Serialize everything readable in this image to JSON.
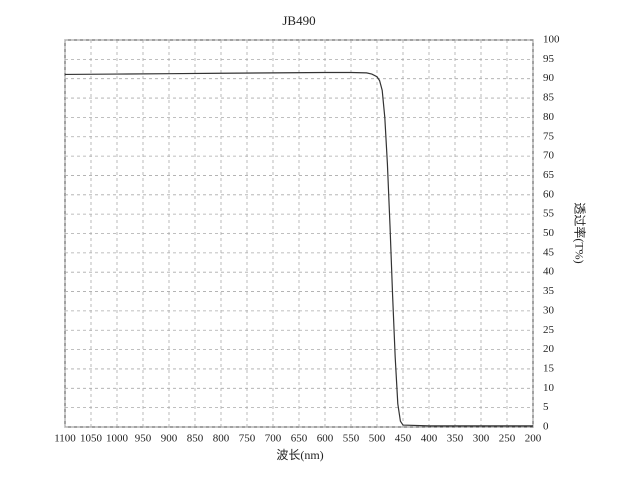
{
  "chart_data": {
    "type": "line",
    "title": "JB490",
    "x_label": "波长(nm)",
    "y_label": "透过率(T%)",
    "x": [
      1100,
      1000,
      900,
      800,
      700,
      600,
      550,
      520,
      510,
      500,
      495,
      490,
      485,
      480,
      475,
      470,
      465,
      460,
      455,
      450,
      400,
      300,
      200
    ],
    "series": [
      {
        "name": "JB490",
        "color": "#333333",
        "values": [
          91.1,
          91.2,
          91.3,
          91.4,
          91.5,
          91.6,
          91.6,
          91.5,
          91.2,
          90.5,
          89.5,
          87,
          80,
          68,
          52,
          34,
          18,
          6,
          1.5,
          0.5,
          0.3,
          0.3,
          0.3
        ]
      }
    ],
    "xlim": [
      1100,
      200
    ],
    "xticks": [
      1100,
      1050,
      1000,
      950,
      900,
      850,
      800,
      750,
      700,
      650,
      600,
      550,
      500,
      450,
      400,
      350,
      300,
      250,
      200
    ],
    "ylim": [
      0,
      100
    ],
    "yticks": [
      0,
      5,
      10,
      15,
      20,
      25,
      30,
      35,
      40,
      45,
      50,
      55,
      60,
      65,
      70,
      75,
      80,
      85,
      90,
      95,
      100
    ],
    "grid": true,
    "y_axis_side": "right"
  }
}
